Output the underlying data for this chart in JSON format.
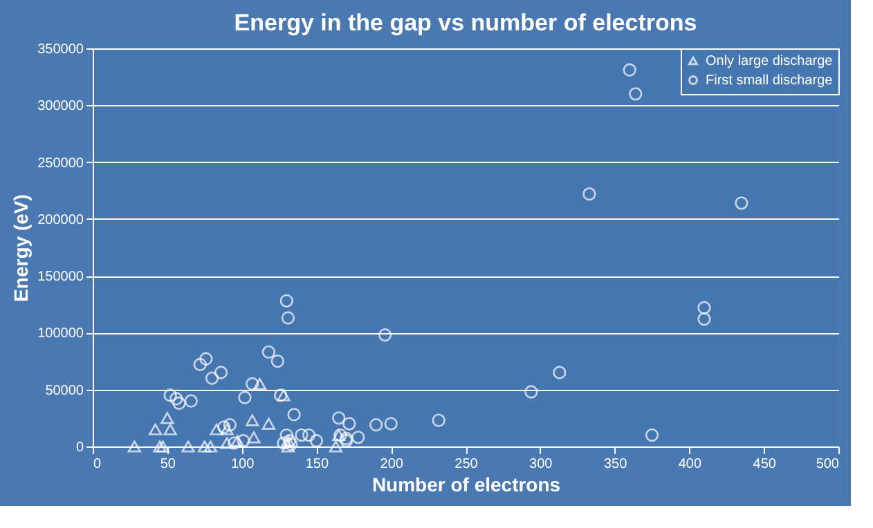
{
  "chart_data": {
    "type": "scatter",
    "title": "Energy in the gap vs number of electrons",
    "xlabel": "Number of electrons",
    "ylabel": "Energy (eV)",
    "xlim": [
      0,
      500
    ],
    "xticks": [
      0,
      50,
      100,
      150,
      200,
      250,
      300,
      350,
      400,
      450,
      500
    ],
    "ylim": [
      0,
      350000
    ],
    "yticks": [
      0,
      50000,
      100000,
      150000,
      200000,
      250000,
      300000,
      350000
    ],
    "grid": "y",
    "legend": "top right",
    "series": [
      {
        "name": "Only large discharge",
        "color": "#ffffff",
        "marker": "triangle",
        "x": [
          28,
          45,
          47,
          64,
          75,
          79,
          42,
          50,
          52,
          83,
          90,
          107,
          118,
          97,
          108,
          128,
          131,
          131,
          163,
          165,
          112,
          90
        ],
        "values": [
          0,
          0,
          0,
          0,
          0,
          0,
          15000,
          25000,
          15000,
          15000,
          15000,
          23000,
          20000,
          5000,
          8000,
          45000,
          5000,
          0,
          0,
          10000,
          55000,
          3000
        ]
      },
      {
        "name": "First small discharge",
        "color": "#ffffff",
        "marker": "circle",
        "x": [
          360,
          364,
          333,
          435,
          410,
          410,
          196,
          313,
          294,
          375,
          232,
          200,
          190,
          178,
          170,
          172,
          165,
          140,
          145,
          150,
          130,
          131,
          118,
          124,
          135,
          126,
          72,
          76,
          80,
          86,
          107,
          102,
          52,
          56,
          58,
          66,
          130,
          132,
          128,
          133,
          88,
          92,
          95,
          101,
          170,
          166
        ],
        "values": [
          331000,
          310000,
          222000,
          214000,
          122000,
          112000,
          98000,
          65000,
          48000,
          10000,
          23000,
          20000,
          19000,
          8000,
          7000,
          20000,
          25000,
          10000,
          10000,
          5000,
          128000,
          113000,
          83000,
          75000,
          28000,
          45000,
          72000,
          77000,
          60000,
          65000,
          55000,
          43000,
          45000,
          42000,
          38000,
          40000,
          10000,
          5000,
          3000,
          2000,
          17000,
          19000,
          3000,
          5000,
          5000,
          10000
        ]
      }
    ]
  }
}
